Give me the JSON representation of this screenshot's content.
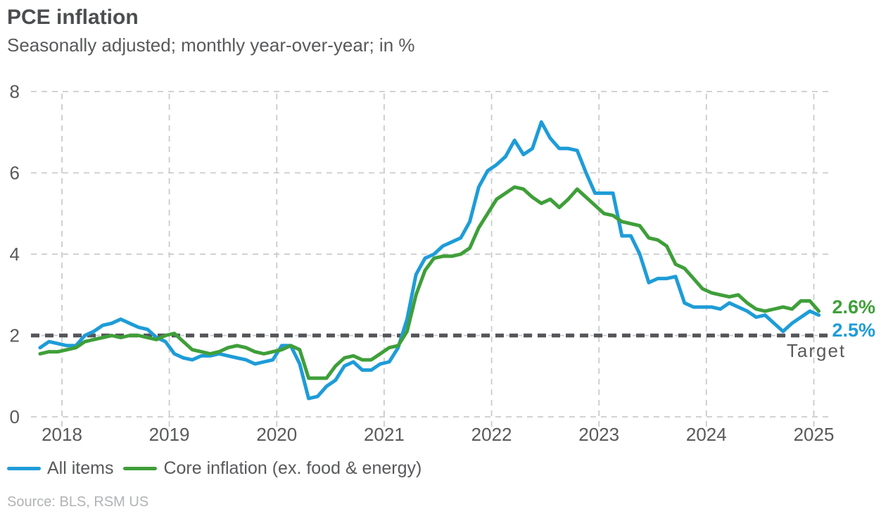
{
  "source_note": "Source: BLS, RSM US",
  "chart_data": {
    "type": "line",
    "title": "PCE inflation",
    "subtitle": "Seasonally adjusted; monthly year-over-year; in %",
    "frequency": "monthly",
    "x_start": "2017-10",
    "x_end": "2025-01",
    "x_tick_labels": [
      "2018",
      "2019",
      "2020",
      "2021",
      "2022",
      "2023",
      "2024",
      "2025"
    ],
    "y_ticks": [
      0,
      2,
      4,
      6,
      8
    ],
    "ylim": [
      0,
      8
    ],
    "grid": true,
    "legend_position": "bottom",
    "gridline_color": "#c9cbcd",
    "target_line": {
      "value": 2,
      "label": "Target",
      "color": "#55565a"
    },
    "series": [
      {
        "name": "All items",
        "color": "#1e9cd8",
        "end_label": "2.5%",
        "values": [
          1.7,
          1.85,
          1.8,
          1.75,
          1.75,
          2.0,
          2.1,
          2.25,
          2.3,
          2.4,
          2.3,
          2.2,
          2.15,
          1.95,
          1.85,
          1.55,
          1.45,
          1.4,
          1.5,
          1.5,
          1.55,
          1.5,
          1.45,
          1.4,
          1.3,
          1.35,
          1.4,
          1.75,
          1.75,
          1.3,
          0.45,
          0.5,
          0.75,
          0.9,
          1.25,
          1.35,
          1.15,
          1.15,
          1.3,
          1.35,
          1.7,
          2.4,
          3.5,
          3.9,
          4.0,
          4.2,
          4.3,
          4.4,
          4.8,
          5.65,
          6.05,
          6.2,
          6.4,
          6.8,
          6.45,
          6.6,
          7.25,
          6.85,
          6.6,
          6.6,
          6.55,
          6.0,
          5.5,
          5.5,
          5.5,
          4.45,
          4.45,
          4.0,
          3.3,
          3.4,
          3.4,
          3.45,
          2.8,
          2.7,
          2.7,
          2.7,
          2.65,
          2.8,
          2.7,
          2.6,
          2.45,
          2.5,
          2.3,
          2.1,
          2.3,
          2.45,
          2.6,
          2.5
        ]
      },
      {
        "name": "Core inflation (ex. food & energy)",
        "color": "#3f9f39",
        "end_label": "2.6%",
        "values": [
          1.55,
          1.6,
          1.6,
          1.65,
          1.7,
          1.85,
          1.9,
          1.95,
          2.0,
          1.95,
          2.0,
          2.0,
          1.95,
          1.9,
          2.0,
          2.05,
          1.85,
          1.65,
          1.6,
          1.55,
          1.6,
          1.7,
          1.75,
          1.7,
          1.6,
          1.55,
          1.6,
          1.65,
          1.75,
          1.65,
          0.95,
          0.95,
          0.95,
          1.25,
          1.45,
          1.5,
          1.4,
          1.4,
          1.55,
          1.7,
          1.75,
          2.1,
          3.0,
          3.6,
          3.9,
          3.95,
          3.95,
          4.0,
          4.15,
          4.65,
          5.0,
          5.35,
          5.5,
          5.65,
          5.6,
          5.4,
          5.25,
          5.35,
          5.15,
          5.35,
          5.6,
          5.4,
          5.2,
          5.0,
          4.95,
          4.8,
          4.75,
          4.7,
          4.4,
          4.35,
          4.2,
          3.75,
          3.65,
          3.4,
          3.15,
          3.05,
          3.0,
          2.95,
          3.0,
          2.8,
          2.65,
          2.6,
          2.65,
          2.7,
          2.65,
          2.85,
          2.85,
          2.6
        ]
      }
    ]
  }
}
